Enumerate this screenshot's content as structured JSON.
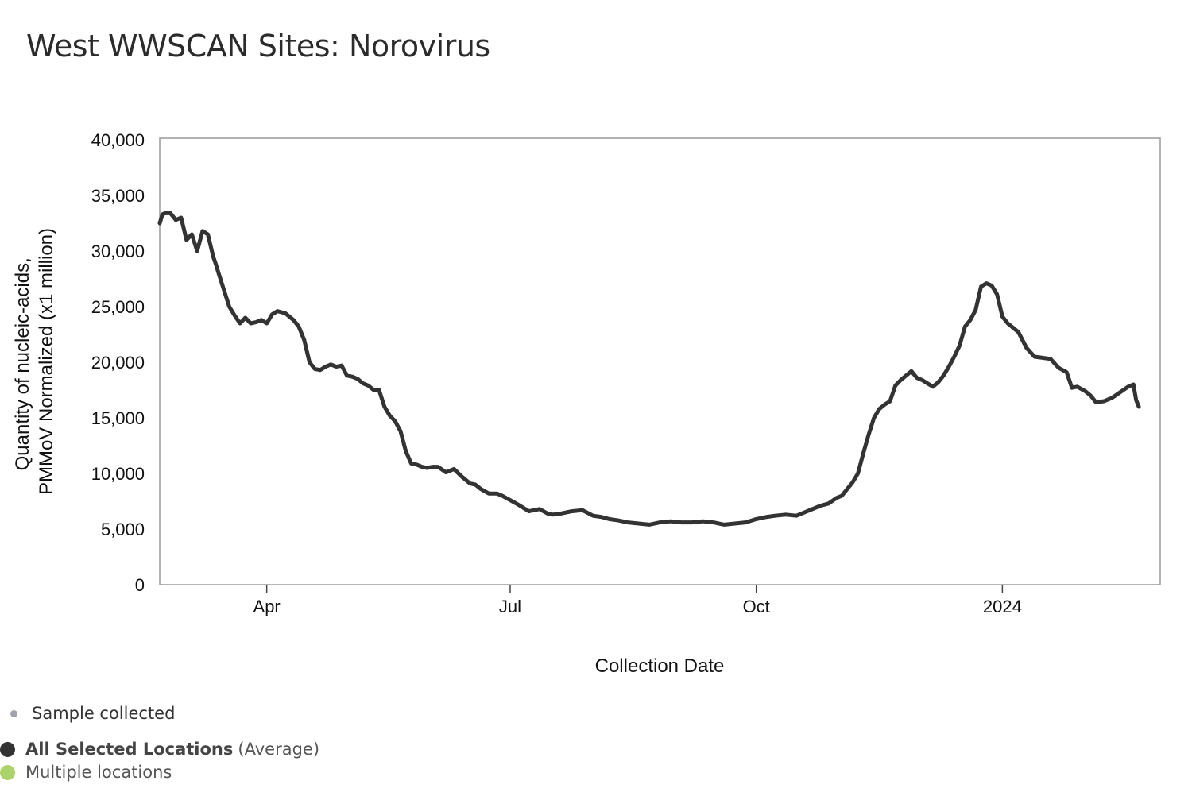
{
  "title": "West WWSCAN Sites: Norovirus",
  "legend": {
    "sample": "Sample collected",
    "sample_color": "#a0a3ad",
    "average_strong": "All Selected Locations",
    "average_suffix": "(Average)",
    "average_color": "#333333",
    "multiple": "Multiple locations",
    "multiple_color": "#a9d469"
  },
  "chart_data": {
    "type": "line",
    "title": "West WWSCAN Sites: Norovirus",
    "xlabel": "Collection Date",
    "ylabel": [
      "Quantity of nucleic-acids,",
      "PMMoV Normalized (x1 million)"
    ],
    "xlim": [
      "2023-02-20",
      "2024-02-29"
    ],
    "ylim": [
      0,
      40000
    ],
    "y_ticks": [
      0,
      5000,
      10000,
      15000,
      20000,
      25000,
      30000,
      35000,
      40000
    ],
    "y_tick_labels": [
      "0",
      "5,000",
      "10,000",
      "15,000",
      "20,000",
      "25,000",
      "30,000",
      "35,000",
      "40,000"
    ],
    "x_ticks": [
      "2023-04-01",
      "2023-07-01",
      "2023-10-01",
      "2024-01-01"
    ],
    "x_tick_labels": [
      "Apr",
      "Jul",
      "Oct",
      "2024"
    ],
    "grid": false,
    "series": [
      {
        "color": "#333333",
        "x": [
          "2023-02-20",
          "2023-02-21",
          "2023-02-22",
          "2023-02-24",
          "2023-02-26",
          "2023-02-28",
          "2023-03-02",
          "2023-03-04",
          "2023-03-06",
          "2023-03-08",
          "2023-03-10",
          "2023-03-12",
          "2023-03-13",
          "2023-03-14",
          "2023-03-16",
          "2023-03-18",
          "2023-03-20",
          "2023-03-22",
          "2023-03-24",
          "2023-03-26",
          "2023-03-28",
          "2023-03-30",
          "2023-04-01",
          "2023-04-03",
          "2023-04-05",
          "2023-04-08",
          "2023-04-11",
          "2023-04-13",
          "2023-04-15",
          "2023-04-17",
          "2023-04-19",
          "2023-04-21",
          "2023-04-23",
          "2023-04-25",
          "2023-04-27",
          "2023-04-29",
          "2023-05-01",
          "2023-05-03",
          "2023-05-05",
          "2023-05-07",
          "2023-05-09",
          "2023-05-11",
          "2023-05-13",
          "2023-05-15",
          "2023-05-17",
          "2023-05-19",
          "2023-05-21",
          "2023-05-23",
          "2023-05-25",
          "2023-05-27",
          "2023-05-29",
          "2023-05-31",
          "2023-06-02",
          "2023-06-04",
          "2023-06-07",
          "2023-06-10",
          "2023-06-13",
          "2023-06-16",
          "2023-06-18",
          "2023-06-20",
          "2023-06-23",
          "2023-06-26",
          "2023-06-28",
          "2023-07-01",
          "2023-07-04",
          "2023-07-08",
          "2023-07-12",
          "2023-07-15",
          "2023-07-17",
          "2023-07-20",
          "2023-07-24",
          "2023-07-28",
          "2023-08-01",
          "2023-08-04",
          "2023-08-07",
          "2023-08-10",
          "2023-08-14",
          "2023-08-18",
          "2023-08-22",
          "2023-08-26",
          "2023-08-30",
          "2023-09-03",
          "2023-09-07",
          "2023-09-11",
          "2023-09-15",
          "2023-09-19",
          "2023-09-23",
          "2023-09-27",
          "2023-10-01",
          "2023-10-05",
          "2023-10-08",
          "2023-10-12",
          "2023-10-16",
          "2023-10-19",
          "2023-10-22",
          "2023-10-25",
          "2023-10-28",
          "2023-10-31",
          "2023-11-02",
          "2023-11-04",
          "2023-11-06",
          "2023-11-08",
          "2023-11-10",
          "2023-11-12",
          "2023-11-14",
          "2023-11-16",
          "2023-11-18",
          "2023-11-20",
          "2023-11-22",
          "2023-11-24",
          "2023-11-26",
          "2023-11-28",
          "2023-11-30",
          "2023-12-02",
          "2023-12-04",
          "2023-12-06",
          "2023-12-08",
          "2023-12-10",
          "2023-12-12",
          "2023-12-14",
          "2023-12-16",
          "2023-12-18",
          "2023-12-20",
          "2023-12-22",
          "2023-12-24",
          "2023-12-26",
          "2023-12-28",
          "2023-12-30",
          "2024-01-01",
          "2024-01-03",
          "2024-01-05",
          "2024-01-07",
          "2024-01-10",
          "2024-01-13",
          "2024-01-16",
          "2024-01-19",
          "2024-01-22",
          "2024-01-25",
          "2024-01-27",
          "2024-01-29",
          "2024-02-01",
          "2024-02-03",
          "2024-02-05",
          "2024-02-08",
          "2024-02-11",
          "2024-02-14",
          "2024-02-17",
          "2024-02-19",
          "2024-02-20",
          "2024-02-21"
        ],
        "values": [
          32500,
          33300,
          33400,
          33400,
          32800,
          33000,
          31000,
          31500,
          30000,
          31800,
          31500,
          29500,
          28800,
          28000,
          26500,
          25000,
          24200,
          23500,
          24000,
          23500,
          23600,
          23800,
          23500,
          24300,
          24600,
          24400,
          23800,
          23200,
          22000,
          20000,
          19400,
          19300,
          19600,
          19800,
          19600,
          19700,
          18800,
          18700,
          18500,
          18100,
          17900,
          17500,
          17500,
          16000,
          15200,
          14700,
          13800,
          12000,
          10900,
          10800,
          10600,
          10500,
          10600,
          10600,
          10100,
          10400,
          9700,
          9100,
          9000,
          8600,
          8200,
          8200,
          8000,
          7600,
          7200,
          6600,
          6800,
          6400,
          6300,
          6400,
          6600,
          6700,
          6200,
          6100,
          5900,
          5800,
          5600,
          5500,
          5400,
          5600,
          5700,
          5600,
          5600,
          5700,
          5600,
          5400,
          5500,
          5600,
          5900,
          6100,
          6200,
          6300,
          6200,
          6500,
          6800,
          7100,
          7300,
          7800,
          8000,
          8600,
          9200,
          10000,
          11800,
          13500,
          15000,
          15800,
          16200,
          16500,
          17900,
          18400,
          18800,
          19200,
          18600,
          18400,
          18100,
          17800,
          18200,
          18800,
          19600,
          20500,
          21500,
          23200,
          23800,
          24700,
          26800,
          27100,
          26900,
          26100,
          24100,
          23500,
          23100,
          22700,
          21300,
          20500,
          20400,
          20300,
          19500,
          19100,
          17700,
          17800,
          17400,
          17000,
          16400,
          16500,
          16800,
          17300,
          17800,
          18000,
          16600,
          16000
        ]
      }
    ]
  }
}
